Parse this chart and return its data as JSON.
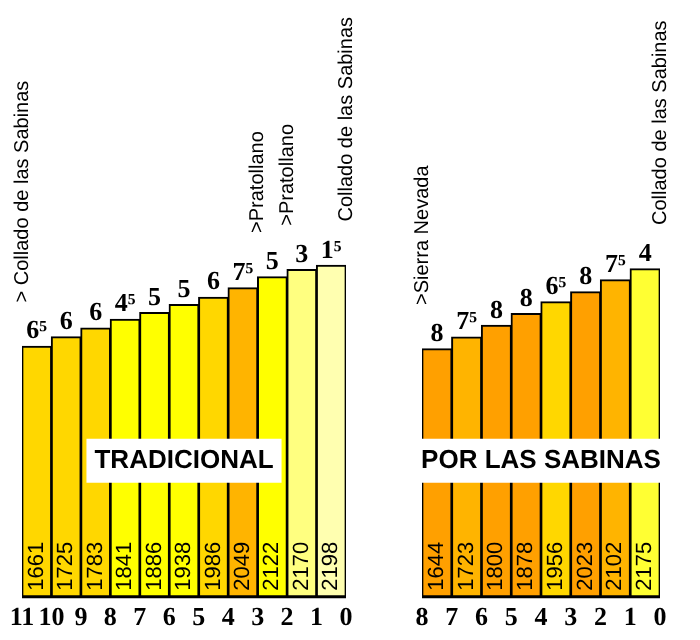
{
  "chart_data": [
    {
      "type": "bar",
      "title": "TRADICIONAL",
      "x": [
        10.5,
        9.5,
        8.5,
        7.5,
        6.5,
        5.5,
        4.5,
        3.5,
        2.5,
        1.5,
        0.5
      ],
      "values": [
        1661,
        1725,
        1783,
        1841,
        1886,
        1938,
        1986,
        2049,
        2122,
        2170,
        2198
      ],
      "colors": [
        "#ffd700",
        "#ffd700",
        "#ffd700",
        "#ffff00",
        "#ffff00",
        "#ffff00",
        "#ffd700",
        "#ffb400",
        "#ffff00",
        "#ffff80",
        "#ffffb0"
      ],
      "data_labels": true,
      "xlim": [
        11,
        0
      ],
      "xticks": [
        11,
        10,
        9,
        8,
        7,
        6,
        5,
        4,
        3,
        2,
        1,
        0
      ],
      "tick_labels": "x",
      "grid": false,
      "legend": false,
      "annotations": [
        {
          "text": "6⁵",
          "x": 10.5,
          "y": 1661
        },
        {
          "text": "6",
          "x": 9.5,
          "y": 1725
        },
        {
          "text": "6",
          "x": 8.5,
          "y": 1783
        },
        {
          "text": "4⁵",
          "x": 7.5,
          "y": 1841
        },
        {
          "text": "5",
          "x": 6.5,
          "y": 1886
        },
        {
          "text": "5",
          "x": 5.5,
          "y": 1938
        },
        {
          "text": "6",
          "x": 4.5,
          "y": 1986
        },
        {
          "text": "7⁵",
          "x": 3.5,
          "y": 2049
        },
        {
          "text": "5",
          "x": 2.5,
          "y": 2122
        },
        {
          "text": "3",
          "x": 1.5,
          "y": 2170
        },
        {
          "text": "1⁵",
          "x": 0.5,
          "y": 2198
        },
        {
          "text": "> Collado de las Sabinas",
          "x": 11,
          "y": 1661
        },
        {
          "text": ">Pratollano",
          "x": 3,
          "y": 2122
        },
        {
          "text": ">Pratollano",
          "x": 2,
          "y": 2170
        },
        {
          "text": "Collado de las Sabinas",
          "x": 0,
          "y": 2198
        }
      ]
    },
    {
      "type": "bar",
      "title": "POR LAS SABINAS",
      "x": [
        7.5,
        6.5,
        5.5,
        4.5,
        3.5,
        2.5,
        1.5,
        0.5
      ],
      "values": [
        1644,
        1723,
        1800,
        1878,
        1956,
        2023,
        2102,
        2175
      ],
      "colors": [
        "#ffa000",
        "#ffb400",
        "#ffa000",
        "#ffa000",
        "#ffd700",
        "#ffa000",
        "#ffb400",
        "#ffff33"
      ],
      "data_labels": true,
      "xlim": [
        8,
        0
      ],
      "xticks": [
        8,
        7,
        6,
        5,
        4,
        3,
        2,
        1,
        0
      ],
      "tick_labels": "x",
      "grid": false,
      "legend": false,
      "annotations": [
        {
          "text": "8",
          "x": 7.5,
          "y": 1644
        },
        {
          "text": "7⁵",
          "x": 6.5,
          "y": 1723
        },
        {
          "text": "8",
          "x": 5.5,
          "y": 1800
        },
        {
          "text": "8",
          "x": 4.5,
          "y": 1878
        },
        {
          "text": "6⁵",
          "x": 3.5,
          "y": 1956
        },
        {
          "text": "8",
          "x": 2.5,
          "y": 2023
        },
        {
          "text": "7⁵",
          "x": 1.5,
          "y": 2102
        },
        {
          "text": "4",
          "x": 0.5,
          "y": 2175
        },
        {
          "text": ">Sierra Nevada",
          "x": 8,
          "y": 1644
        },
        {
          "text": "Collado de las Sabinas",
          "x": 0,
          "y": 2175
        }
      ]
    }
  ]
}
